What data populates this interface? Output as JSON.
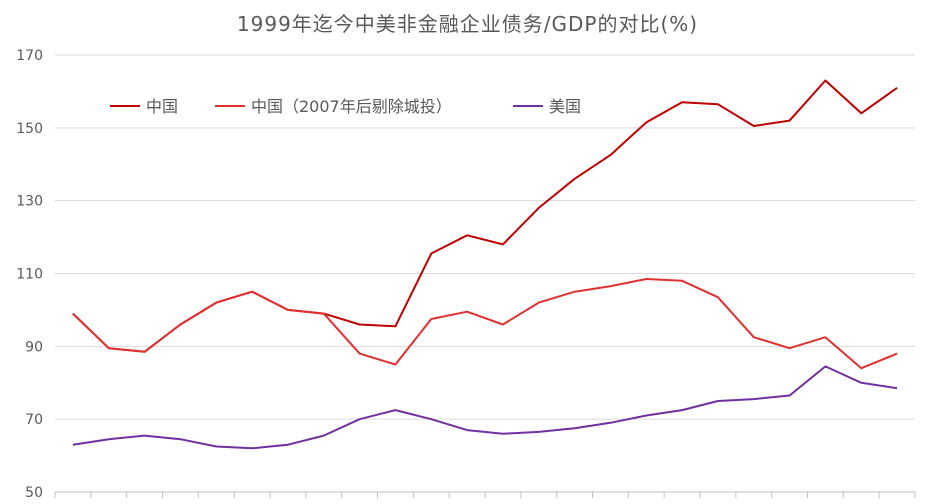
{
  "chart_data": {
    "type": "line",
    "title": "1999年迄今中美非金融企业债务/GDP的对比(%)",
    "xlabel": "",
    "ylabel": "",
    "ylim": [
      50,
      170
    ],
    "yticks": [
      50,
      70,
      90,
      110,
      130,
      150,
      170
    ],
    "grid": true,
    "legend_position": "top-left",
    "n_points": 24,
    "series": [
      {
        "name": "中国",
        "color": "#c00000",
        "values": [
          99,
          89.5,
          88.5,
          96,
          102,
          105,
          100,
          99,
          96,
          95.5,
          115.5,
          120.5,
          118,
          128,
          136,
          142.5,
          151.5,
          157,
          156.5,
          150.5,
          152,
          163,
          154,
          161
        ]
      },
      {
        "name": "中国（2007年后剔除城投）",
        "color": "#e03030",
        "values": [
          99,
          89.5,
          88.5,
          96,
          102,
          105,
          100,
          99,
          88,
          85,
          97.5,
          99.5,
          96,
          102,
          105,
          106.5,
          108.5,
          108,
          103.5,
          92.5,
          89.5,
          92.5,
          84,
          88
        ]
      },
      {
        "name": "美国",
        "color": "#7030a0",
        "values": [
          63,
          64.5,
          65.5,
          64.5,
          62.5,
          62,
          63,
          65.5,
          70,
          72.5,
          70,
          67,
          66,
          66.5,
          67.5,
          69,
          71,
          72.5,
          75,
          75.5,
          76.5,
          84.5,
          80,
          78.5
        ]
      }
    ]
  }
}
